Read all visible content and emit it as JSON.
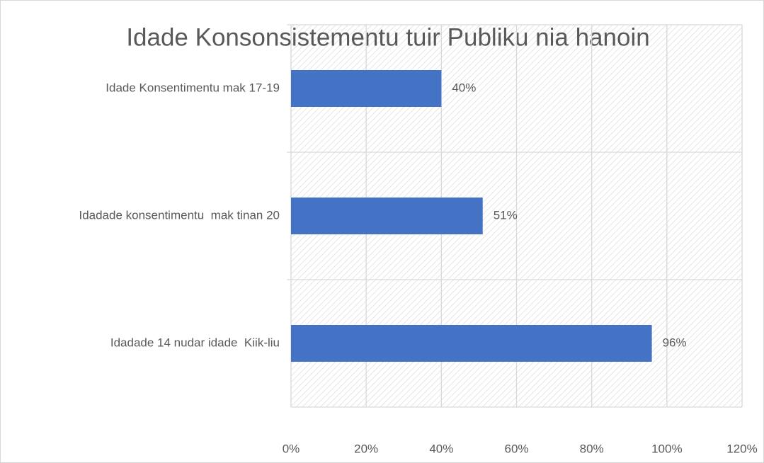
{
  "chart_data": {
    "type": "bar",
    "orientation": "horizontal",
    "title": "Idade Konsonsistementu tuir Publiku nia hanoin",
    "categories": [
      "Idade Konsentimentu mak 17-19",
      "Idadade konsentimentu  mak tinan 20",
      "Idadade 14 nudar idade  Kiik-liu"
    ],
    "values": [
      40,
      51,
      96
    ],
    "value_labels": [
      "40%",
      "51%",
      "96%"
    ],
    "color": "#4472c4",
    "xlim": [
      0,
      120
    ],
    "xticks": [
      {
        "value": 0,
        "label": "0%"
      },
      {
        "value": 20,
        "label": "20%"
      },
      {
        "value": 40,
        "label": "40%"
      },
      {
        "value": 60,
        "label": "60%"
      },
      {
        "value": 80,
        "label": "80%"
      },
      {
        "value": 100,
        "label": "100%"
      },
      {
        "value": 120,
        "label": "120%"
      }
    ],
    "grid": true
  }
}
